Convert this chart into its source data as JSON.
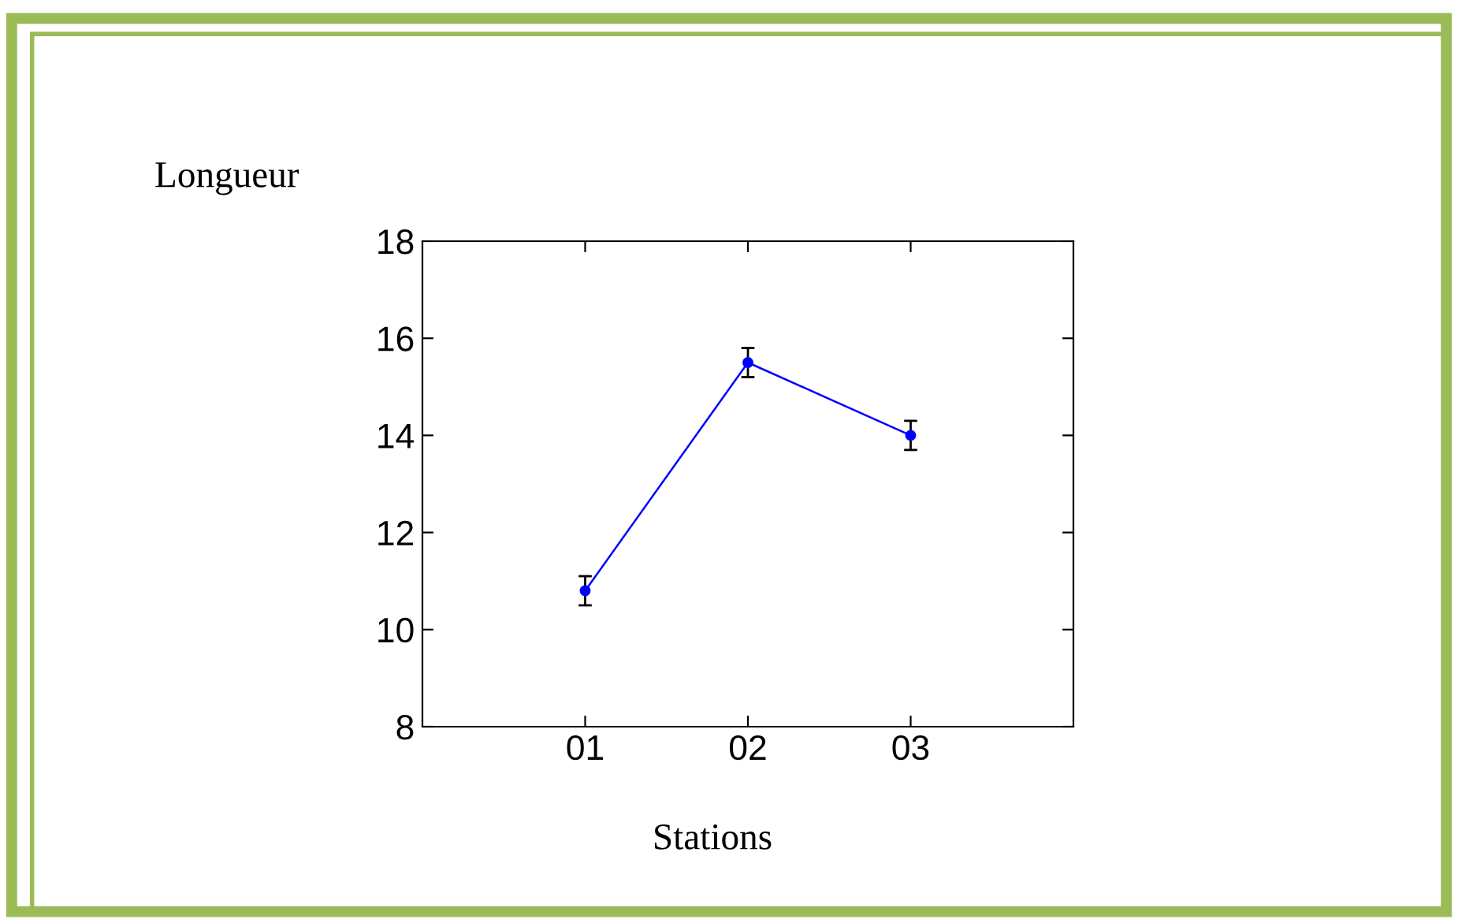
{
  "chart_data": {
    "type": "line",
    "xlabel": "Stations",
    "ylabel": "Longueur",
    "x": [
      1,
      2,
      3
    ],
    "xlim": [
      0,
      4
    ],
    "xticks": [
      {
        "value": 1,
        "label": "01"
      },
      {
        "value": 2,
        "label": "02"
      },
      {
        "value": 3,
        "label": "03"
      }
    ],
    "ylim": [
      8,
      18
    ],
    "yticks": [
      8,
      10,
      12,
      14,
      16,
      18
    ],
    "series": [
      {
        "color": "#0000ff",
        "values": [
          10.8,
          15.5,
          14.0
        ],
        "errors": [
          0.3,
          0.3,
          0.3
        ]
      }
    ],
    "marker": "circle",
    "line_style": "solid",
    "grid": false,
    "legend": false
  }
}
